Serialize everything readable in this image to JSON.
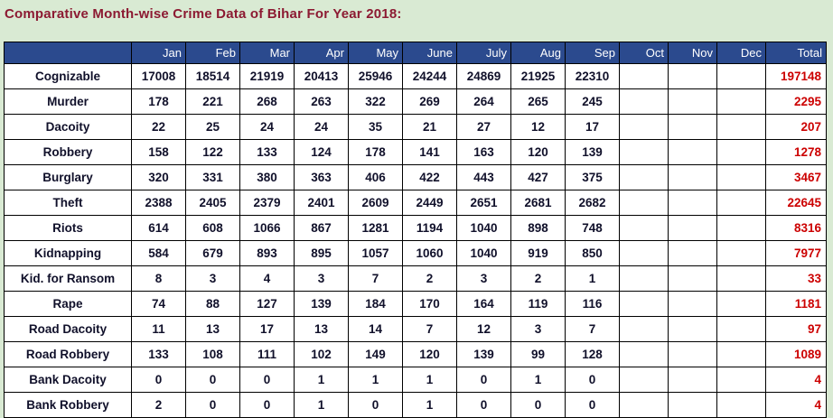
{
  "colors": {
    "page_background": "#d9ead3",
    "title_text": "#8c1a32",
    "header_bg": "#2b4a8e",
    "header_text": "#ffffff",
    "cell_text": "#10102a",
    "total_text": "#cc0000",
    "border": "#000000"
  },
  "chart_data": {
    "type": "table",
    "title": "Comparative Month-wise Crime Data of Bihar For Year 2018:",
    "columns": [
      "",
      "Jan",
      "Feb",
      "Mar",
      "Apr",
      "May",
      "June",
      "July",
      "Aug",
      "Sep",
      "Oct",
      "Nov",
      "Dec",
      "Total"
    ],
    "rows": [
      {
        "label": "Cognizable",
        "values": [
          17008,
          18514,
          21919,
          20413,
          25946,
          24244,
          24869,
          21925,
          22310,
          null,
          null,
          null
        ],
        "total": 197148
      },
      {
        "label": "Murder",
        "values": [
          178,
          221,
          268,
          263,
          322,
          269,
          264,
          265,
          245,
          null,
          null,
          null
        ],
        "total": 2295
      },
      {
        "label": "Dacoity",
        "values": [
          22,
          25,
          24,
          24,
          35,
          21,
          27,
          12,
          17,
          null,
          null,
          null
        ],
        "total": 207
      },
      {
        "label": "Robbery",
        "values": [
          158,
          122,
          133,
          124,
          178,
          141,
          163,
          120,
          139,
          null,
          null,
          null
        ],
        "total": 1278
      },
      {
        "label": "Burglary",
        "values": [
          320,
          331,
          380,
          363,
          406,
          422,
          443,
          427,
          375,
          null,
          null,
          null
        ],
        "total": 3467
      },
      {
        "label": "Theft",
        "values": [
          2388,
          2405,
          2379,
          2401,
          2609,
          2449,
          2651,
          2681,
          2682,
          null,
          null,
          null
        ],
        "total": 22645
      },
      {
        "label": "Riots",
        "values": [
          614,
          608,
          1066,
          867,
          1281,
          1194,
          1040,
          898,
          748,
          null,
          null,
          null
        ],
        "total": 8316
      },
      {
        "label": "Kidnapping",
        "values": [
          584,
          679,
          893,
          895,
          1057,
          1060,
          1040,
          919,
          850,
          null,
          null,
          null
        ],
        "total": 7977
      },
      {
        "label": "Kid. for Ransom",
        "values": [
          8,
          3,
          4,
          3,
          7,
          2,
          3,
          2,
          1,
          null,
          null,
          null
        ],
        "total": 33
      },
      {
        "label": "Rape",
        "values": [
          74,
          88,
          127,
          139,
          184,
          170,
          164,
          119,
          116,
          null,
          null,
          null
        ],
        "total": 1181
      },
      {
        "label": "Road Dacoity",
        "values": [
          11,
          13,
          17,
          13,
          14,
          7,
          12,
          3,
          7,
          null,
          null,
          null
        ],
        "total": 97
      },
      {
        "label": "Road Robbery",
        "values": [
          133,
          108,
          111,
          102,
          149,
          120,
          139,
          99,
          128,
          null,
          null,
          null
        ],
        "total": 1089
      },
      {
        "label": "Bank Dacoity",
        "values": [
          0,
          0,
          0,
          1,
          1,
          1,
          0,
          1,
          0,
          null,
          null,
          null
        ],
        "total": 4
      },
      {
        "label": "Bank Robbery",
        "values": [
          2,
          0,
          0,
          1,
          0,
          1,
          0,
          0,
          0,
          null,
          null,
          null
        ],
        "total": 4
      }
    ]
  }
}
